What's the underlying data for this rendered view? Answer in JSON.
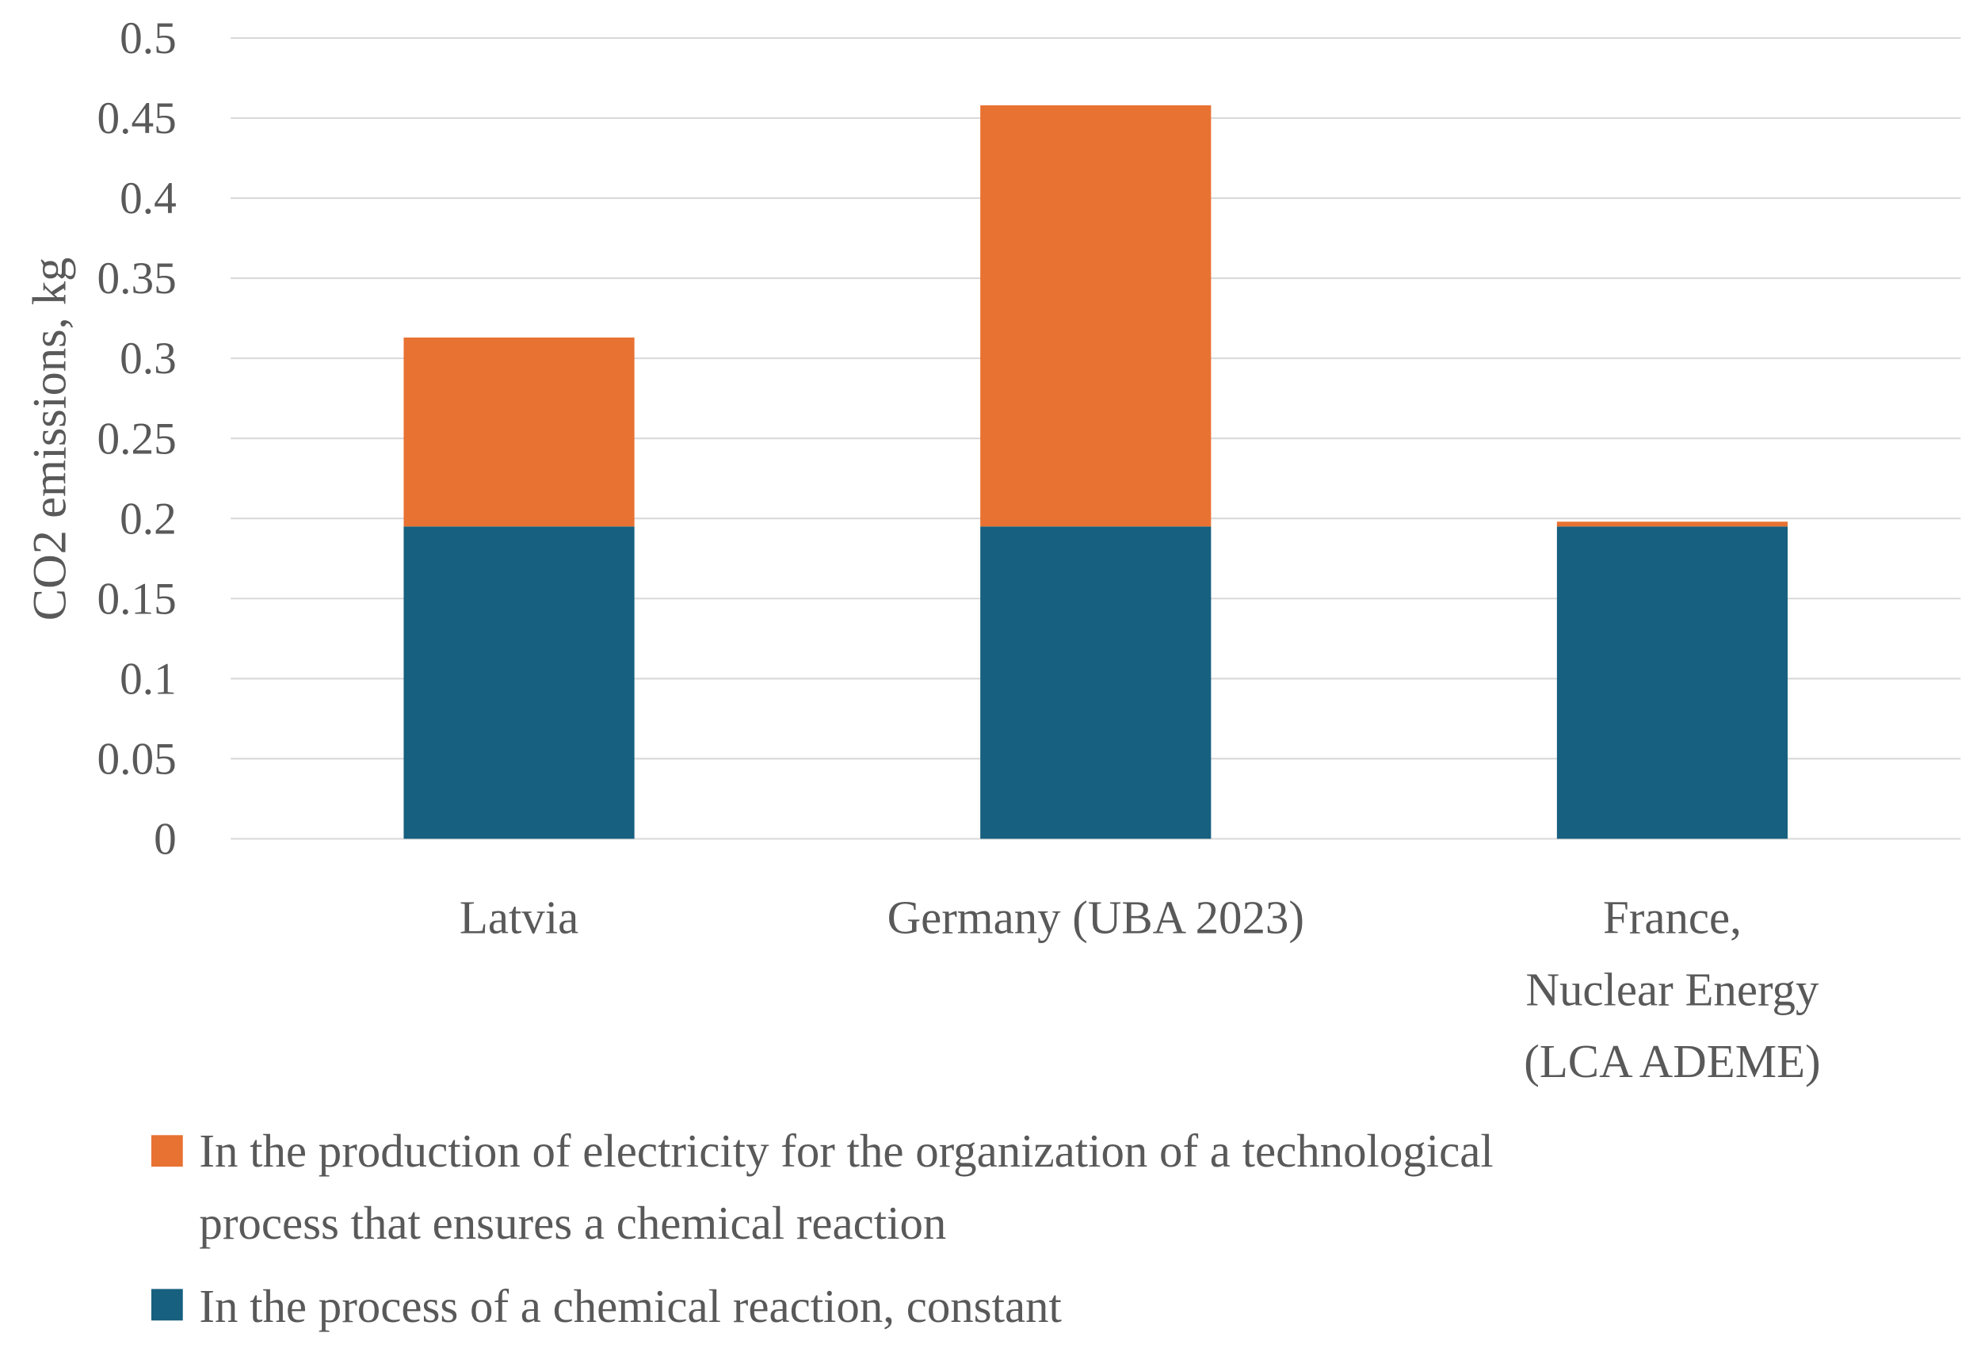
{
  "chart_data": {
    "type": "bar",
    "stacked": true,
    "title": "",
    "xlabel": "",
    "ylabel": "CO2 emissions, kg",
    "ylim": [
      0,
      0.5
    ],
    "yticks": [
      "0",
      "0.05",
      "0.1",
      "0.15",
      "0.2",
      "0.25",
      "0.3",
      "0.35",
      "0.4",
      "0.45",
      "0.5"
    ],
    "grid": true,
    "legend_position": "bottom-left",
    "categories": [
      [
        "Latvia"
      ],
      [
        "Germany (UBA 2023)"
      ],
      [
        "France,",
        "Nuclear Energy",
        "(LCA ADEME)"
      ]
    ],
    "series": [
      {
        "name": "In the process of a chemical reaction, constant",
        "color": "#17607F",
        "values": [
          0.195,
          0.195,
          0.195
        ]
      },
      {
        "name": "In the production of electricity for the organization of a technological process that ensures a chemical reaction",
        "legend_lines": [
          "In the production of electricity for the organization of a technological",
          "process that ensures a chemical reaction"
        ],
        "color": "#E87232",
        "values": [
          0.118,
          0.263,
          0.003
        ]
      }
    ]
  }
}
